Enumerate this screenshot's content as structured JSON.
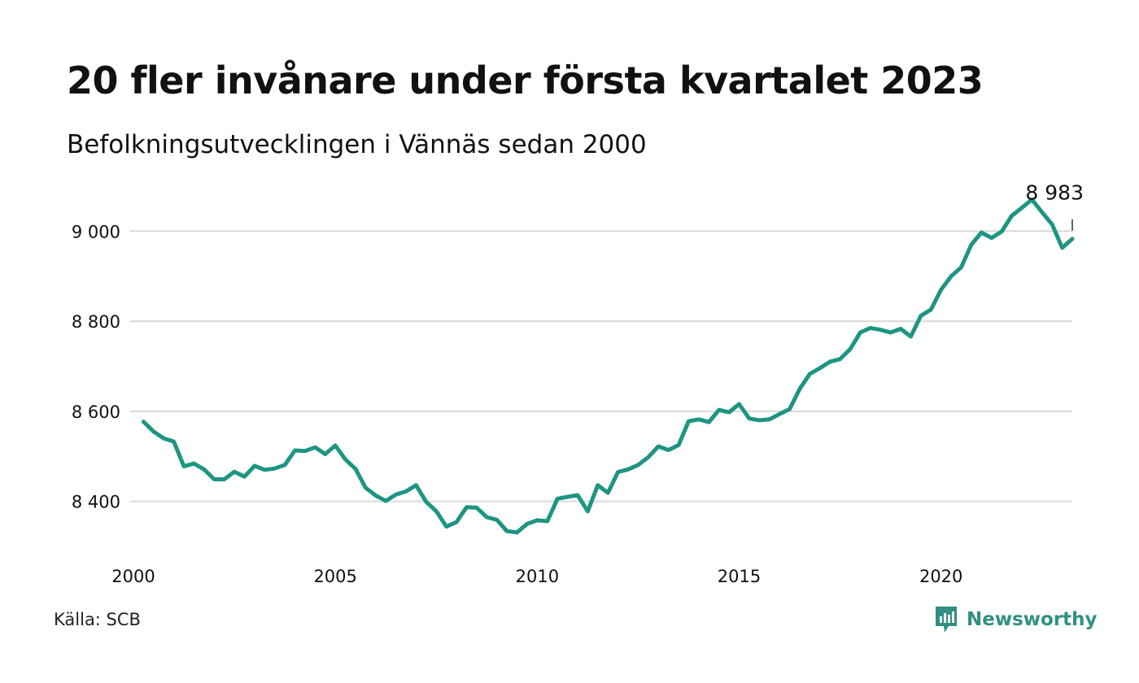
{
  "title": "20 fler invånare under första kvartalet 2023",
  "subtitle": "Befolkningsutvecklingen i Vännäs sedan 2000",
  "source": "Källa: SCB",
  "brand": {
    "name": "Newsworthy",
    "icon": "newsworthy-logo-icon",
    "color": "#2f8f82"
  },
  "colors": {
    "line": "#1d9582",
    "grid": "#d9d9d9"
  },
  "chart_data": {
    "type": "line",
    "title": "20 fler invånare under första kvartalet 2023",
    "subtitle": "Befolkningsutvecklingen i Vännäs sedan 2000",
    "xlabel": "",
    "ylabel": "",
    "grid": true,
    "xlim": [
      2000,
      2023.25
    ],
    "ylim": [
      8300,
      9080
    ],
    "x_ticks": [
      2000,
      2005,
      2010,
      2015,
      2020
    ],
    "x_tick_labels": [
      "2000",
      "2005",
      "2010",
      "2015",
      "2020"
    ],
    "y_ticks": [
      8400,
      8600,
      8800,
      9000
    ],
    "y_tick_labels": [
      "8 400",
      "8 600",
      "8 800",
      "9 000"
    ],
    "annotation": {
      "label": "8 983",
      "x": 2023.25,
      "y": 8983
    },
    "series": [
      {
        "x": [
          2000.25,
          2000.5,
          2000.75,
          2001.0,
          2001.25,
          2001.5,
          2001.75,
          2002.0,
          2002.25,
          2002.5,
          2002.75,
          2003.0,
          2003.25,
          2003.5,
          2003.75,
          2004.0,
          2004.25,
          2004.5,
          2004.75,
          2005.0,
          2005.25,
          2005.5,
          2005.75,
          2006.0,
          2006.25,
          2006.5,
          2006.75,
          2007.0,
          2007.25,
          2007.5,
          2007.75,
          2008.0,
          2008.25,
          2008.5,
          2008.75,
          2009.0,
          2009.25,
          2009.5,
          2009.75,
          2010.0,
          2010.25,
          2010.5,
          2010.75,
          2011.0,
          2011.25,
          2011.5,
          2011.75,
          2012.0,
          2012.25,
          2012.5,
          2012.75,
          2013.0,
          2013.25,
          2013.5,
          2013.75,
          2014.0,
          2014.25,
          2014.5,
          2014.75,
          2015.0,
          2015.25,
          2015.5,
          2015.75,
          2016.0,
          2016.25,
          2016.5,
          2016.75,
          2017.0,
          2017.25,
          2017.5,
          2017.75,
          2018.0,
          2018.25,
          2018.5,
          2018.75,
          2019.0,
          2019.25,
          2019.5,
          2019.75,
          2020.0,
          2020.25,
          2020.5,
          2020.75,
          2021.0,
          2021.25,
          2021.5,
          2021.75,
          2022.0,
          2022.25,
          2022.5,
          2022.75,
          2023.0,
          2023.25
        ],
        "values": [
          8577,
          8555,
          8540,
          8533,
          8478,
          8484,
          8471,
          8449,
          8449,
          8466,
          8455,
          8479,
          8470,
          8473,
          8481,
          8513,
          8512,
          8520,
          8505,
          8524,
          8493,
          8472,
          8430,
          8413,
          8401,
          8415,
          8422,
          8436,
          8399,
          8378,
          8344,
          8354,
          8387,
          8386,
          8365,
          8359,
          8334,
          8331,
          8350,
          8358,
          8356,
          8406,
          8410,
          8414,
          8378,
          8436,
          8419,
          8465,
          8471,
          8481,
          8498,
          8522,
          8514,
          8525,
          8578,
          8582,
          8576,
          8603,
          8598,
          8616,
          8584,
          8580,
          8582,
          8594,
          8605,
          8650,
          8683,
          8696,
          8710,
          8716,
          8738,
          8775,
          8785,
          8781,
          8775,
          8783,
          8766,
          8812,
          8826,
          8870,
          8900,
          8920,
          8970,
          8997,
          8985,
          8999,
          9034,
          9052,
          9070,
          9042,
          9015,
          8963,
          8983
        ]
      }
    ]
  }
}
